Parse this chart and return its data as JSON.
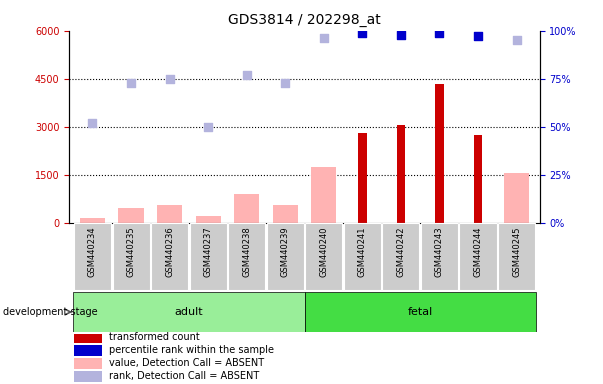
{
  "title": "GDS3814 / 202298_at",
  "samples": [
    "GSM440234",
    "GSM440235",
    "GSM440236",
    "GSM440237",
    "GSM440238",
    "GSM440239",
    "GSM440240",
    "GSM440241",
    "GSM440242",
    "GSM440243",
    "GSM440244",
    "GSM440245"
  ],
  "groups": {
    "adult": [
      0,
      1,
      2,
      3,
      4,
      5
    ],
    "fetal": [
      6,
      7,
      8,
      9,
      10,
      11
    ]
  },
  "transformed_count": [
    null,
    null,
    null,
    null,
    null,
    null,
    null,
    2800,
    3050,
    4350,
    2750,
    null
  ],
  "transformed_count_absent": [
    150,
    450,
    550,
    200,
    900,
    550,
    1750,
    null,
    null,
    null,
    null,
    1550
  ],
  "percentile_rank": [
    null,
    null,
    null,
    null,
    null,
    null,
    null,
    99,
    98,
    99,
    97,
    null
  ],
  "percentile_rank_absent": [
    52,
    73,
    75,
    50,
    77,
    73,
    96,
    null,
    null,
    null,
    null,
    95
  ],
  "left_ylim": [
    0,
    6000
  ],
  "right_ylim": [
    0,
    100
  ],
  "left_yticks": [
    0,
    1500,
    3000,
    4500,
    6000
  ],
  "right_yticks": [
    0,
    25,
    50,
    75,
    100
  ],
  "left_yticklabels": [
    "0",
    "1500",
    "3000",
    "4500",
    "6000"
  ],
  "right_yticklabels": [
    "0%",
    "25%",
    "50%",
    "75%",
    "100%"
  ],
  "color_dark_red": "#cc0000",
  "color_light_pink": "#ffb3b3",
  "color_dark_blue": "#0000cc",
  "color_light_blue": "#b3b3dd",
  "color_adult_bg": "#99ee99",
  "color_fetal_bg": "#44dd44",
  "color_xticklabels_bg": "#cccccc",
  "legend_items": [
    {
      "label": "transformed count",
      "color": "#cc0000"
    },
    {
      "label": "percentile rank within the sample",
      "color": "#0000cc"
    },
    {
      "label": "value, Detection Call = ABSENT",
      "color": "#ffb3b3"
    },
    {
      "label": "rank, Detection Call = ABSENT",
      "color": "#b3b3dd"
    }
  ]
}
